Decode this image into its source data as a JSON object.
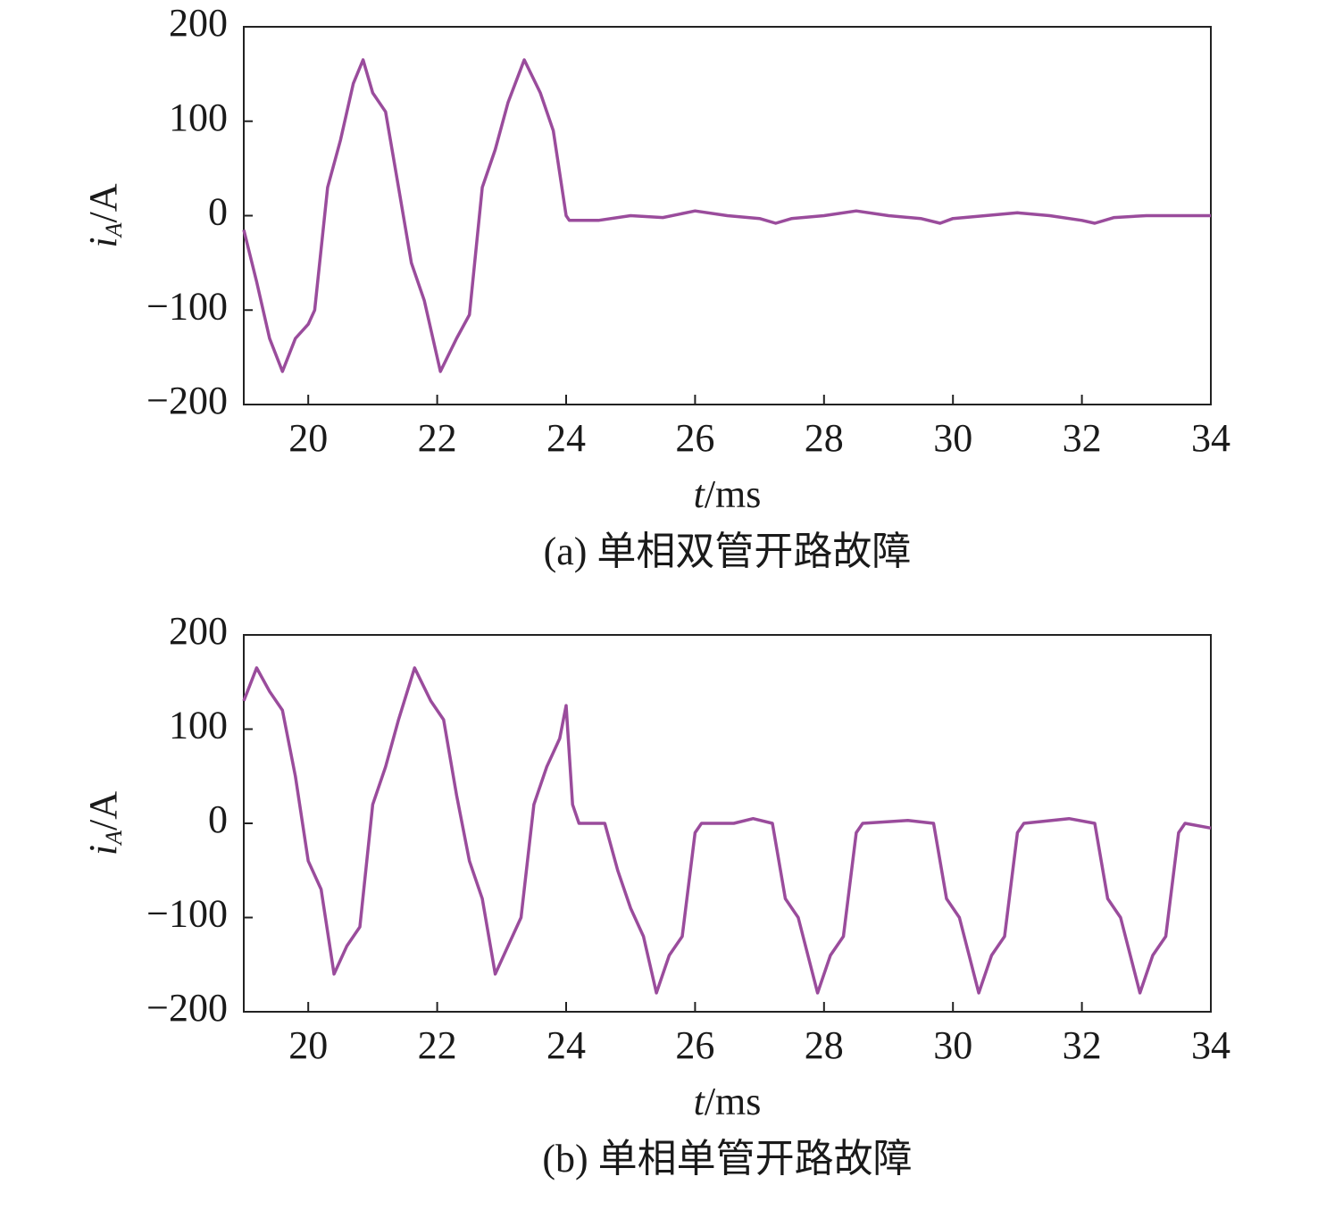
{
  "chart_data": [
    {
      "type": "line",
      "caption": "(a) 单相双管开路故障",
      "xlabel_symbol": "t",
      "xlabel_unit": "/ms",
      "ylabel_symbol": "i",
      "ylabel_subscript": "A",
      "ylabel_unit": "/A",
      "xlim": [
        19,
        34
      ],
      "xticks": [
        20,
        22,
        24,
        26,
        28,
        30,
        32,
        34
      ],
      "ylim": [
        -200,
        200
      ],
      "yticks": [
        {
          "value": -200,
          "label": "−200"
        },
        {
          "value": -100,
          "label": "−100"
        },
        0,
        100,
        200
      ],
      "series": [
        {
          "color": "#9a4c9c",
          "x": [
            19.0,
            19.2,
            19.4,
            19.6,
            19.8,
            20.0,
            20.1,
            20.3,
            20.5,
            20.7,
            20.85,
            21.0,
            21.2,
            21.4,
            21.6,
            21.8,
            22.05,
            22.3,
            22.5,
            22.7,
            22.9,
            23.1,
            23.35,
            23.6,
            23.8,
            24.0,
            24.05,
            24.5,
            25.0,
            25.5,
            26.0,
            26.5,
            27.0,
            27.25,
            27.5,
            28.0,
            28.5,
            29.0,
            29.5,
            29.8,
            30.0,
            30.5,
            31.0,
            31.5,
            32.0,
            32.2,
            32.5,
            33.0,
            33.5,
            34.0
          ],
          "values": [
            -15,
            -70,
            -130,
            -165,
            -130,
            -115,
            -100,
            30,
            80,
            140,
            165,
            130,
            110,
            30,
            -50,
            -90,
            -165,
            -130,
            -105,
            30,
            70,
            120,
            165,
            130,
            90,
            0,
            -5,
            -5,
            0,
            -2,
            5,
            0,
            -3,
            -8,
            -3,
            0,
            5,
            0,
            -3,
            -8,
            -3,
            0,
            3,
            0,
            -5,
            -8,
            -2,
            0,
            0,
            0
          ]
        }
      ]
    },
    {
      "type": "line",
      "caption": "(b) 单相单管开路故障",
      "xlabel_symbol": "t",
      "xlabel_unit": "/ms",
      "ylabel_symbol": "i",
      "ylabel_subscript": "A",
      "ylabel_unit": "/A",
      "xlim": [
        19,
        34
      ],
      "xticks": [
        20,
        22,
        24,
        26,
        28,
        30,
        32,
        34
      ],
      "ylim": [
        -200,
        200
      ],
      "yticks": [
        {
          "value": -200,
          "label": "−200"
        },
        {
          "value": -100,
          "label": "−100"
        },
        0,
        100,
        200
      ],
      "series": [
        {
          "color": "#9a4c9c",
          "x": [
            19.0,
            19.2,
            19.4,
            19.6,
            19.8,
            20.0,
            20.2,
            20.4,
            20.6,
            20.8,
            21.0,
            21.2,
            21.4,
            21.65,
            21.9,
            22.1,
            22.3,
            22.5,
            22.7,
            22.9,
            23.1,
            23.3,
            23.5,
            23.7,
            23.9,
            24.0,
            24.1,
            24.2,
            24.6,
            24.8,
            25.0,
            25.2,
            25.4,
            25.6,
            25.8,
            26.0,
            26.1,
            26.6,
            26.9,
            27.2,
            27.4,
            27.6,
            27.9,
            28.1,
            28.3,
            28.5,
            28.6,
            29.3,
            29.7,
            29.9,
            30.1,
            30.4,
            30.6,
            30.8,
            31.0,
            31.1,
            31.8,
            32.2,
            32.4,
            32.6,
            32.9,
            33.1,
            33.3,
            33.5,
            33.6,
            34.0
          ],
          "values": [
            130,
            165,
            140,
            120,
            50,
            -40,
            -70,
            -160,
            -130,
            -110,
            20,
            60,
            110,
            165,
            130,
            110,
            30,
            -40,
            -80,
            -160,
            -130,
            -100,
            20,
            60,
            90,
            125,
            20,
            0,
            0,
            -50,
            -90,
            -120,
            -180,
            -140,
            -120,
            -10,
            0,
            0,
            5,
            0,
            -80,
            -100,
            -180,
            -140,
            -120,
            -10,
            0,
            3,
            0,
            -80,
            -100,
            -180,
            -140,
            -120,
            -10,
            0,
            5,
            0,
            -80,
            -100,
            -180,
            -140,
            -120,
            -10,
            0,
            -5
          ]
        }
      ]
    }
  ]
}
